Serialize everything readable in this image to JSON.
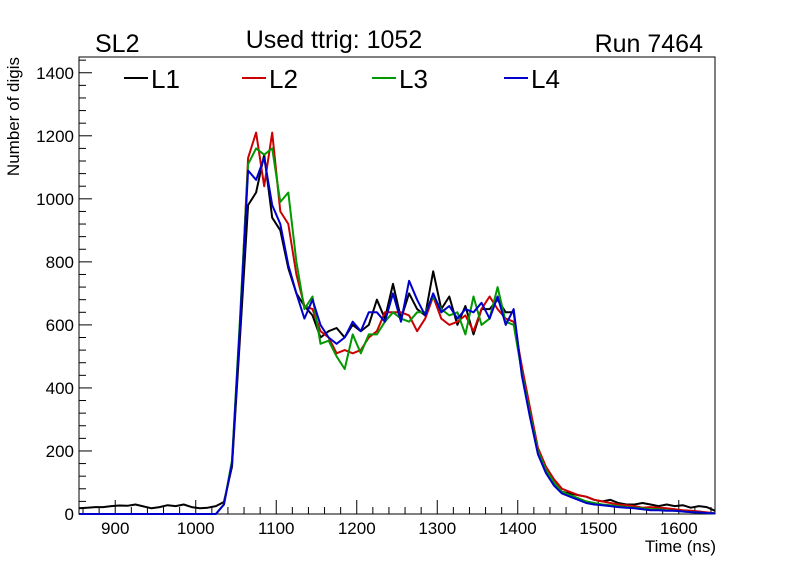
{
  "chart_data": {
    "type": "line",
    "title_left": "SL2",
    "title_center": "Used ttrig: 1052",
    "title_right": "Run 7464",
    "xlabel": "Time (ns)",
    "ylabel": "Number of digis",
    "xlim": [
      855,
      1645
    ],
    "ylim": [
      0,
      1450
    ],
    "xticks": [
      900,
      1000,
      1100,
      1200,
      1300,
      1400,
      1500,
      1600
    ],
    "yticks": [
      0,
      200,
      400,
      600,
      800,
      1000,
      1200,
      1400
    ],
    "x": [
      855,
      865,
      875,
      885,
      895,
      905,
      915,
      925,
      935,
      945,
      955,
      965,
      975,
      985,
      995,
      1005,
      1015,
      1025,
      1035,
      1045,
      1055,
      1065,
      1075,
      1085,
      1095,
      1105,
      1115,
      1125,
      1135,
      1145,
      1155,
      1165,
      1175,
      1185,
      1195,
      1205,
      1215,
      1225,
      1235,
      1245,
      1255,
      1265,
      1275,
      1285,
      1295,
      1305,
      1315,
      1325,
      1335,
      1345,
      1355,
      1365,
      1375,
      1385,
      1395,
      1405,
      1415,
      1425,
      1435,
      1445,
      1455,
      1465,
      1475,
      1485,
      1495,
      1505,
      1515,
      1525,
      1535,
      1545,
      1555,
      1565,
      1575,
      1585,
      1595,
      1605,
      1615,
      1625,
      1635,
      1645
    ],
    "series": [
      {
        "name": "L1",
        "color": "#000000",
        "values": [
          18,
          20,
          22,
          22,
          25,
          27,
          26,
          30,
          24,
          18,
          22,
          28,
          25,
          30,
          22,
          18,
          20,
          25,
          38,
          150,
          560,
          980,
          1020,
          1140,
          940,
          900,
          780,
          700,
          660,
          630,
          560,
          580,
          590,
          560,
          600,
          580,
          600,
          680,
          620,
          730,
          620,
          700,
          650,
          630,
          770,
          650,
          690,
          600,
          660,
          570,
          650,
          650,
          680,
          640,
          640,
          450,
          320,
          200,
          140,
          100,
          70,
          65,
          60,
          55,
          45,
          40,
          45,
          35,
          30,
          30,
          35,
          30,
          25,
          30,
          25,
          28,
          20,
          25,
          22,
          10
        ]
      },
      {
        "name": "L2",
        "color": "#cc0000",
        "values": [
          0,
          0,
          0,
          0,
          0,
          0,
          0,
          0,
          0,
          0,
          0,
          0,
          0,
          0,
          0,
          0,
          0,
          0,
          30,
          160,
          600,
          1130,
          1210,
          1040,
          1210,
          960,
          920,
          760,
          660,
          650,
          580,
          560,
          510,
          520,
          510,
          520,
          560,
          580,
          640,
          640,
          640,
          630,
          580,
          620,
          690,
          620,
          600,
          610,
          630,
          580,
          650,
          690,
          650,
          620,
          610,
          470,
          340,
          210,
          150,
          110,
          80,
          70,
          60,
          55,
          45,
          40,
          35,
          30,
          28,
          25,
          20,
          22,
          20,
          18,
          15,
          12,
          10,
          8,
          5,
          2
        ]
      },
      {
        "name": "L3",
        "color": "#009900",
        "values": [
          0,
          0,
          0,
          0,
          0,
          0,
          0,
          0,
          0,
          0,
          0,
          0,
          0,
          0,
          0,
          0,
          0,
          0,
          30,
          170,
          620,
          1110,
          1160,
          1140,
          1160,
          990,
          1020,
          800,
          650,
          690,
          540,
          550,
          500,
          460,
          570,
          510,
          570,
          570,
          610,
          640,
          620,
          610,
          640,
          640,
          690,
          650,
          630,
          640,
          570,
          690,
          600,
          620,
          720,
          610,
          600,
          450,
          320,
          200,
          140,
          100,
          70,
          60,
          50,
          40,
          35,
          30,
          28,
          25,
          22,
          20,
          18,
          15,
          15,
          12,
          10,
          8,
          6,
          5,
          3,
          2
        ]
      },
      {
        "name": "L4",
        "color": "#0000cc",
        "values": [
          0,
          0,
          0,
          0,
          0,
          0,
          0,
          0,
          0,
          0,
          0,
          0,
          0,
          0,
          0,
          0,
          0,
          0,
          30,
          160,
          600,
          1090,
          1060,
          1130,
          980,
          920,
          790,
          700,
          620,
          680,
          600,
          560,
          540,
          560,
          610,
          580,
          640,
          640,
          610,
          700,
          610,
          740,
          680,
          630,
          700,
          640,
          660,
          620,
          650,
          640,
          670,
          620,
          690,
          600,
          650,
          440,
          310,
          190,
          130,
          90,
          65,
          55,
          45,
          35,
          30,
          28,
          25,
          22,
          20,
          18,
          15,
          12,
          12,
          10,
          10,
          8,
          6,
          5,
          3,
          2
        ]
      }
    ],
    "legend": {
      "placement": "top",
      "entries": [
        "L1",
        "L2",
        "L3",
        "L4"
      ]
    },
    "grid": false
  }
}
